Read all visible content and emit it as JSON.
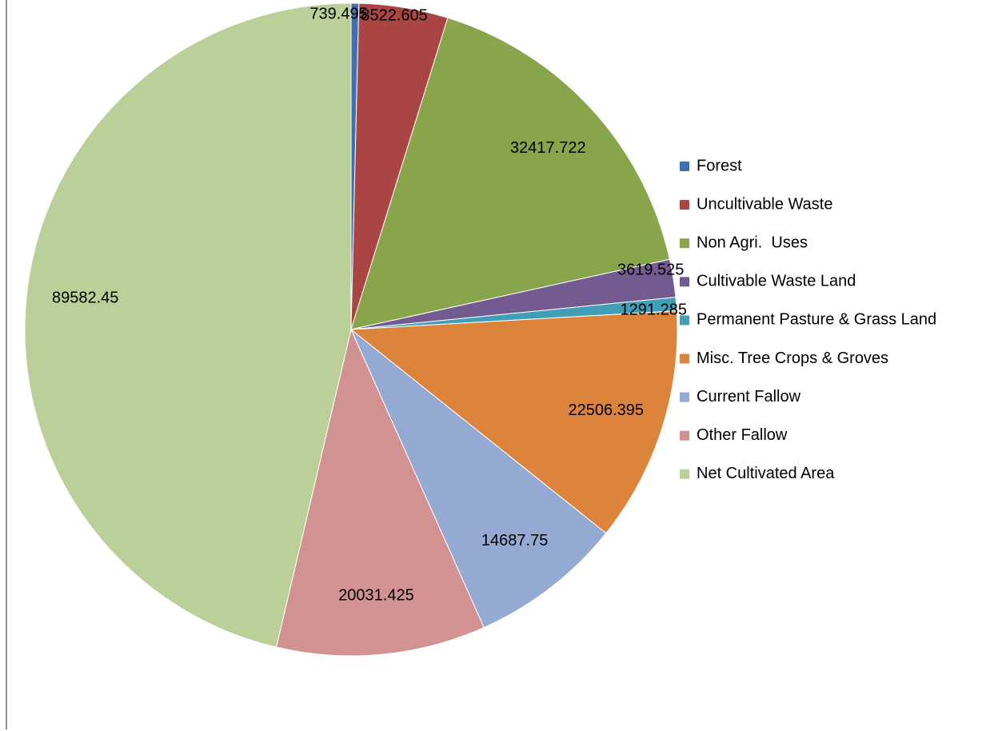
{
  "chart_data": {
    "type": "pie",
    "categories": [
      "Forest",
      "Uncultivable Waste",
      "Non Agri.  Uses",
      "Cultivable Waste Land",
      "Permanent Pasture & Grass Land",
      "Misc. Tree Crops & Groves",
      "Current Fallow",
      "Other Fallow",
      "Net Cultivated Area"
    ],
    "values": [
      739.495,
      8522.605,
      32417.722,
      3619.525,
      1291.285,
      22506.395,
      14687.75,
      20031.425,
      89582.45
    ],
    "colors": [
      "#3f6fae",
      "#a94543",
      "#89a54b",
      "#735a91",
      "#3e9fb6",
      "#dc843c",
      "#95aad2",
      "#d39292",
      "#bbcf98"
    ],
    "legend": "right"
  }
}
